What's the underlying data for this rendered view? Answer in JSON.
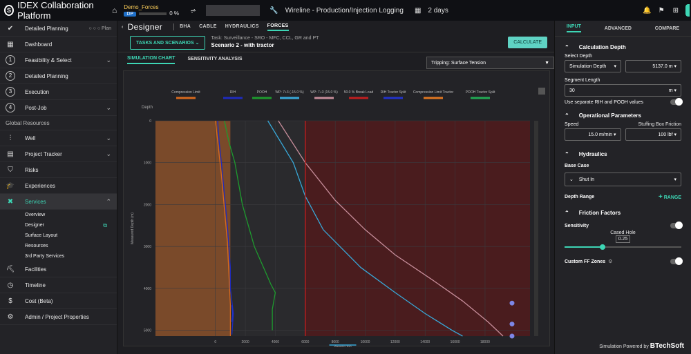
{
  "app": {
    "title": "IDEX Collaboration Platform",
    "project": "Demo_Forces",
    "project_badge": "DP",
    "progress": "0 %",
    "service": "Wireline - Production/Injection Logging",
    "duration": "2 days"
  },
  "sidebar": {
    "top": [
      {
        "label": "Detailed Planning",
        "extra": "○ ○ ○ Plan"
      },
      {
        "label": "Dashboard"
      }
    ],
    "steps": [
      {
        "n": "1",
        "label": "Feasibility & Select"
      },
      {
        "n": "2",
        "label": "Detailed Planning"
      },
      {
        "n": "3",
        "label": "Execution"
      },
      {
        "n": "4",
        "label": "Post-Job"
      }
    ],
    "section": "Global Resources",
    "resources": [
      {
        "label": "Well"
      },
      {
        "label": "Project Tracker"
      },
      {
        "label": "Risks"
      },
      {
        "label": "Experiences"
      }
    ],
    "services": {
      "label": "Services",
      "subs": [
        "Overview",
        "Designer",
        "Surface Layout",
        "Resources",
        "3rd Party Services"
      ]
    },
    "bottom": [
      {
        "label": "Facilities"
      },
      {
        "label": "Timeline"
      },
      {
        "label": "Cost (Beta)"
      },
      {
        "label": "Admin / Project Properties"
      }
    ]
  },
  "designer": {
    "title": "Designer",
    "tabs": [
      "BHA",
      "CABLE",
      "HYDRAULICS",
      "FORCES"
    ],
    "task_button": "TASKS AND SCENARIOS",
    "task_line": "Task: Surveillance - SRO - MFC, CCL, GR and PT",
    "scenario": "Scenario 2 - with tractor",
    "calculate": "CALCULATE",
    "subtabs": [
      "SIMULATION CHART",
      "SENSITIVITY ANALYSIS"
    ],
    "mode": "Tripping: Surface Tension"
  },
  "chart_data": {
    "type": "line",
    "xlabel": "Weight (lbf)",
    "ylabel": "Measured Depth (m)",
    "depth_label": "Depth",
    "xlim": [
      -4000,
      21000
    ],
    "ylim": [
      0,
      5137
    ],
    "xticks": [
      0,
      2000,
      4000,
      6000,
      8000,
      10000,
      12000,
      14000,
      16000,
      18000
    ],
    "yticks": [
      0,
      1000,
      2000,
      3000,
      4000,
      5000
    ],
    "break_load_x": 6000,
    "series": [
      {
        "name": "Compression Limit",
        "color": "#d86a1e",
        "x": [
          0,
          400,
          800,
          1000,
          1000
        ],
        "y": [
          0,
          1300,
          2900,
          4400,
          5137
        ]
      },
      {
        "name": "RIH",
        "color": "#1f2bbf",
        "x": [
          150,
          250,
          400,
          800,
          1000,
          1000,
          1200,
          1100
        ],
        "y": [
          0,
          500,
          1000,
          2500,
          3500,
          4000,
          4600,
          5100
        ]
      },
      {
        "name": "POOH",
        "color": "#1e9b2e",
        "x": [
          600,
          900,
          1300,
          1800,
          2600,
          3700,
          4000,
          3800,
          3800
        ],
        "y": [
          0,
          500,
          1000,
          2000,
          3000,
          3900,
          4100,
          4500,
          5000
        ]
      },
      {
        "name": "WP: 7+3 (-15.0 %)",
        "color": "#38a8d8",
        "x": [
          3500,
          5200,
          6000,
          7200,
          9700,
          12000,
          14000,
          15800,
          16500
        ],
        "y": [
          0,
          1000,
          1800,
          2600,
          3500,
          4100,
          4600,
          5000,
          5137
        ]
      },
      {
        "name": "WP: 7+3 (15.0 %)",
        "color": "#c68d9a",
        "x": [
          4200,
          6000,
          8000,
          10000,
          12000,
          14500,
          16500,
          18200,
          19200
        ],
        "y": [
          0,
          1000,
          1900,
          2600,
          3200,
          3800,
          4300,
          4800,
          5137
        ]
      },
      {
        "name": "50.0 % Break Load",
        "color": "#c21f1f",
        "x": [
          6000,
          6000
        ],
        "y": [
          0,
          5137
        ]
      },
      {
        "name": "RIH Tractor Split",
        "color": "#2233cc",
        "x": [
          1100,
          1150,
          1100
        ],
        "y": [
          4400,
          4600,
          4800
        ]
      },
      {
        "name": "Compression Limit Tractor",
        "color": "#e07722",
        "x": [],
        "y": []
      },
      {
        "name": "POOH Tractor Split",
        "color": "#22aa55",
        "x": [],
        "y": []
      }
    ],
    "markers": [
      {
        "x": 19800,
        "y": 4350
      },
      {
        "x": 19800,
        "y": 4850
      },
      {
        "x": 19800,
        "y": 5137
      }
    ]
  },
  "right": {
    "tabs": [
      "INPUT",
      "ADVANCED",
      "COMPARE"
    ],
    "calc_depth": "Calculation Depth",
    "select_depth": "Select Depth",
    "depth_mode": "Simulation Depth",
    "depth_value": "5137.0",
    "depth_unit": "m",
    "seg_label": "Segment Length",
    "seg_value": "30",
    "seg_unit": "m",
    "sep_label": "Use separate RIH and POOH values",
    "op_params": "Operational Parameters",
    "speed_label": "Speed",
    "speed_value": "15.0",
    "speed_unit": "m/min",
    "stuffing_label": "Stuffing Box Friction",
    "stuffing_value": "100",
    "stuffing_unit": "lbf",
    "hydraulics": "Hydraulics",
    "base_case": "Base Case",
    "base_value": "Shut In",
    "depth_range": "Depth Range",
    "range_btn": "RANGE",
    "friction": "Friction Factors",
    "sensitivity": "Sensitivity",
    "cased": "Cased Hole",
    "cased_value": "0.25",
    "custom_ff": "Custom FF Zones",
    "powered": "Simulation Powered by",
    "brand": "BTechSoft"
  }
}
